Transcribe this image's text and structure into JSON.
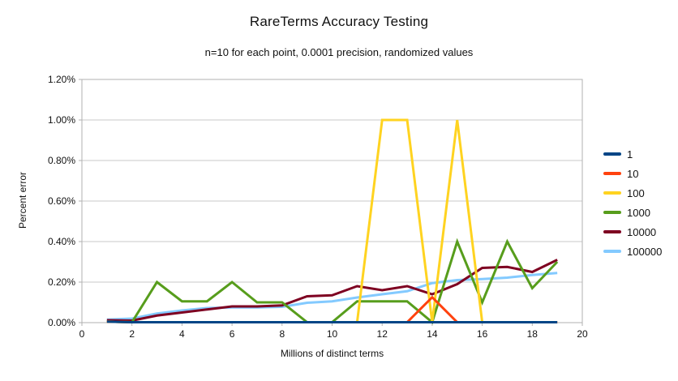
{
  "title": "RareTerms Accuracy Testing",
  "subtitle": "n=10 for each point, 0.0001 precision, randomized values",
  "chart_data": {
    "type": "line",
    "title": "RareTerms Accuracy Testing",
    "subtitle": "n=10 for each point, 0.0001 precision, randomized values",
    "xlabel": "Millions of distinct terms",
    "ylabel": "Percent error",
    "xlim": [
      0,
      20
    ],
    "ylim": [
      0,
      1.2
    ],
    "grid": true,
    "legend_position": "right",
    "y_unit": "percent",
    "x_ticks": [
      "0",
      "2",
      "4",
      "6",
      "8",
      "10",
      "12",
      "14",
      "16",
      "18",
      "20"
    ],
    "y_ticks": [
      "0.00%",
      "0.20%",
      "0.40%",
      "0.60%",
      "0.80%",
      "1.00%",
      "1.20%"
    ],
    "x": [
      1,
      2,
      3,
      4,
      5,
      6,
      7,
      8,
      9,
      10,
      11,
      12,
      13,
      14,
      15,
      16,
      17,
      18,
      19
    ],
    "series": [
      {
        "name": "1",
        "color": "#004586",
        "values": [
          0.005,
          0.002,
          0.002,
          0.002,
          0.002,
          0.002,
          0.002,
          0.002,
          0.002,
          0.002,
          0.002,
          0.002,
          0.002,
          0.002,
          0.002,
          0.002,
          0.002,
          0.002,
          0.002
        ]
      },
      {
        "name": "10",
        "color": "#ff420e",
        "values": [
          0.005,
          0.002,
          0.002,
          0.002,
          0.002,
          0.002,
          0.002,
          0.002,
          0.002,
          0.002,
          0.002,
          0.002,
          0.002,
          0.125,
          0.002,
          0.002,
          0.002,
          0.002,
          0.002
        ]
      },
      {
        "name": "100",
        "color": "#ffd320",
        "values": [
          0.005,
          0.002,
          0.002,
          0.002,
          0.002,
          0.002,
          0.002,
          0.002,
          0.002,
          0.002,
          0.002,
          1.0,
          1.0,
          0.002,
          1.0,
          0.002,
          0.002,
          0.002,
          0.002
        ]
      },
      {
        "name": "1000",
        "color": "#579d1c",
        "values": [
          0.005,
          0.002,
          0.2,
          0.105,
          0.105,
          0.2,
          0.1,
          0.1,
          0.002,
          0.002,
          0.105,
          0.105,
          0.105,
          0.002,
          0.4,
          0.1,
          0.4,
          0.17,
          0.3
        ]
      },
      {
        "name": "10000",
        "color": "#7e0021",
        "values": [
          0.012,
          0.01,
          0.035,
          0.05,
          0.065,
          0.08,
          0.08,
          0.085,
          0.13,
          0.135,
          0.18,
          0.16,
          0.18,
          0.14,
          0.19,
          0.27,
          0.275,
          0.25,
          0.31
        ]
      },
      {
        "name": "100000",
        "color": "#83caff",
        "values": [
          0.015,
          0.02,
          0.045,
          0.06,
          0.072,
          0.075,
          0.075,
          0.078,
          0.098,
          0.105,
          0.124,
          0.14,
          0.155,
          0.195,
          0.21,
          0.215,
          0.222,
          0.235,
          0.245
        ]
      }
    ]
  }
}
